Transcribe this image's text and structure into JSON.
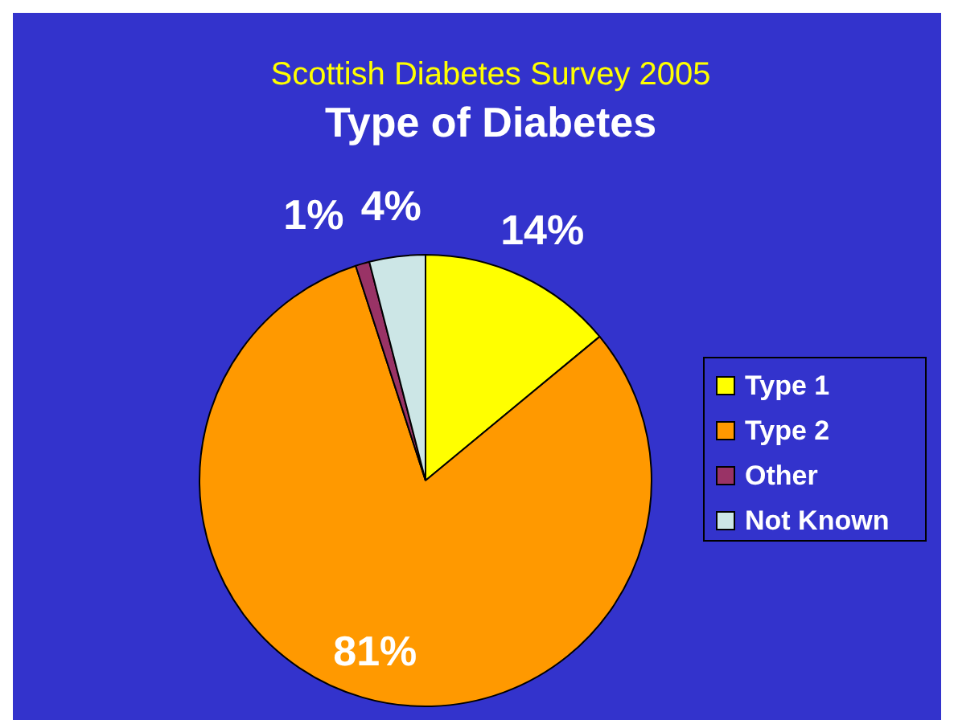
{
  "chart_data": {
    "type": "pie",
    "title": "Type of Diabetes",
    "subtitle": "Scottish Diabetes Survey 2005",
    "categories": [
      "Type 1",
      "Type 2",
      "Other",
      "Not Known"
    ],
    "values": [
      14,
      81,
      1,
      4
    ],
    "value_labels": [
      "14%",
      "81%",
      "1%",
      "4%"
    ],
    "colors": [
      "#ffff00",
      "#ff9900",
      "#993366",
      "#cce6e6"
    ],
    "legend": "right"
  }
}
